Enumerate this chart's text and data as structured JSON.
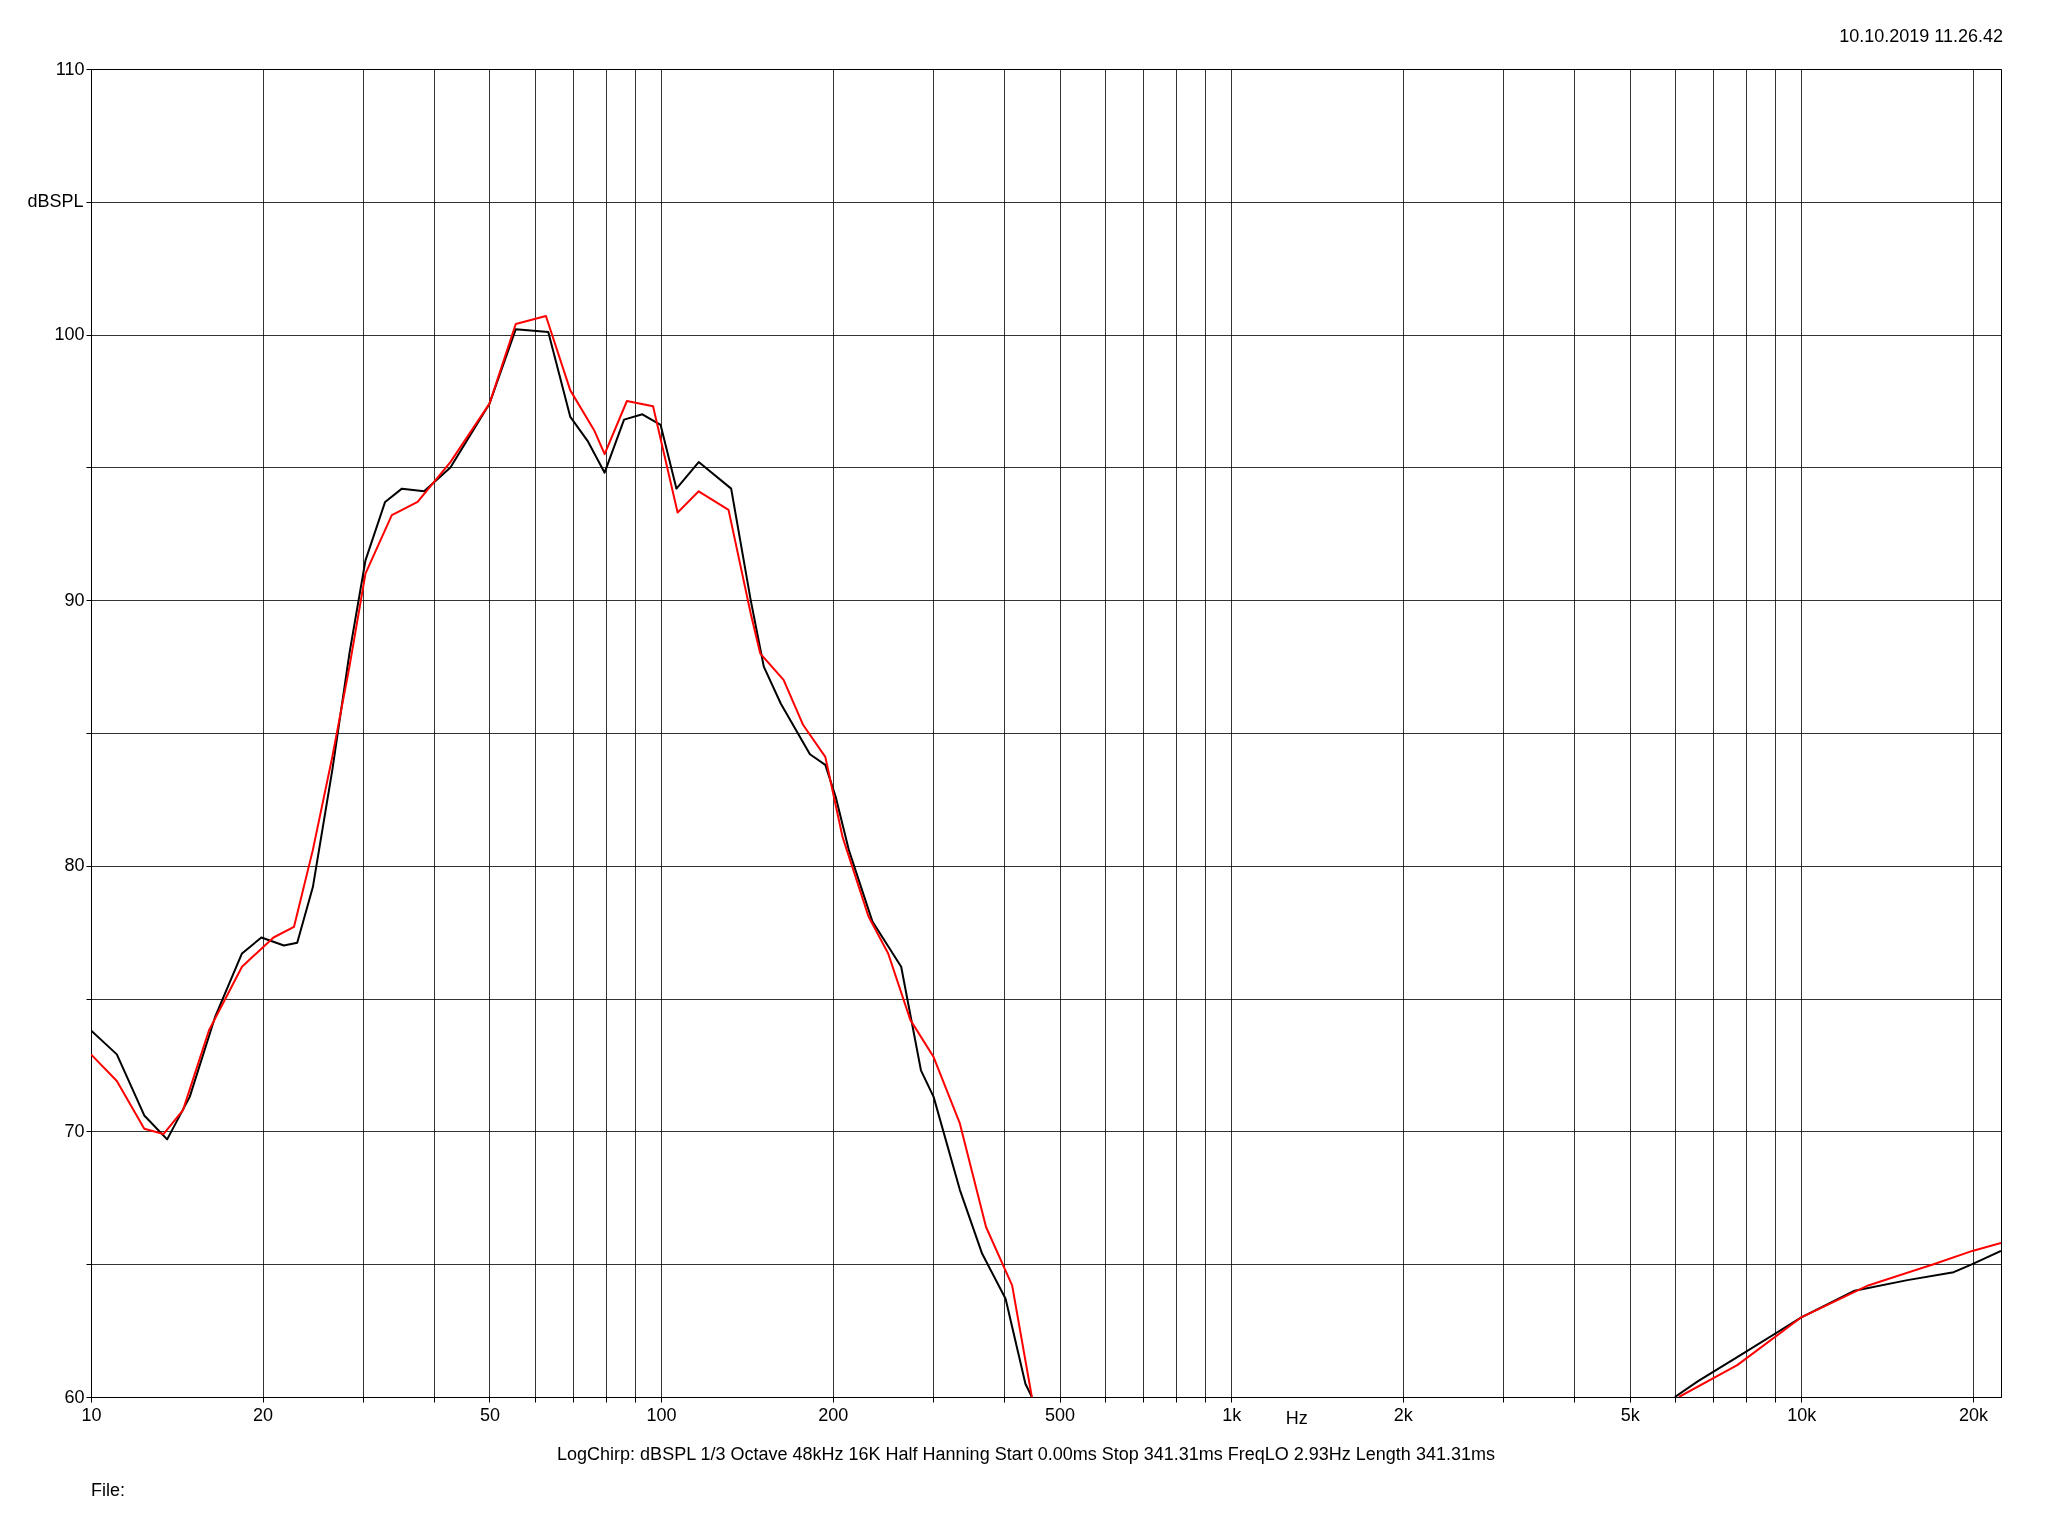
{
  "chart_data": {
    "type": "line",
    "xlabel": "Hz",
    "ylabel": "dBSPL",
    "log": "x",
    "grid": true,
    "xlim": [
      10,
      22400
    ],
    "xticks": [
      10,
      {
        "value": 20,
        "label": "20"
      },
      {
        "value": 30,
        "label": null
      },
      {
        "value": 40,
        "label": null
      },
      50,
      {
        "value": 60,
        "label": null
      },
      {
        "value": 70,
        "label": null
      },
      {
        "value": 80,
        "label": null
      },
      {
        "value": 90,
        "label": null
      },
      100,
      200,
      {
        "value": 300,
        "label": null
      },
      {
        "value": 400,
        "label": null
      },
      500,
      {
        "value": 600,
        "label": null
      },
      {
        "value": 700,
        "label": null
      },
      {
        "value": 800,
        "label": null
      },
      {
        "value": 900,
        "label": null
      },
      {
        "value": 1000,
        "label": "1k"
      },
      {
        "value": 2000,
        "label": "2k"
      },
      {
        "value": 3000,
        "label": null
      },
      {
        "value": 4000,
        "label": null
      },
      {
        "value": 5000,
        "label": "5k"
      },
      {
        "value": 6000,
        "label": null
      },
      {
        "value": 7000,
        "label": null
      },
      {
        "value": 8000,
        "label": null
      },
      {
        "value": 9000,
        "label": null
      },
      {
        "value": 10000,
        "label": "10k"
      },
      {
        "value": 20000,
        "label": "20k"
      }
    ],
    "ylim": [
      60,
      110
    ],
    "yticks": [
      60,
      {
        "value": 65,
        "label": null
      },
      70,
      {
        "value": 75,
        "label": null
      },
      80,
      {
        "value": 85,
        "label": null
      },
      90,
      {
        "value": 95,
        "label": null
      },
      100,
      {
        "value": 105,
        "label": null
      },
      110
    ],
    "annotations": [
      "10.10.2019 11.26.42",
      "LogChirp:  dBSPL   1/3 Octave   48kHz   16K   Half Hanning   Start 0.00ms   Stop 341.31ms   FreqLO 2.93Hz   Length 341.31ms",
      "File:"
    ],
    "series": [
      {
        "color": "#000000",
        "x": [
          10,
          11.1,
          12.4,
          13.6,
          14.9,
          16.5,
          18.4,
          19.9,
          21.8,
          23,
          24.5,
          26.5,
          28.4,
          30.3,
          32.8,
          35.1,
          38.4,
          42.7,
          50,
          55.6,
          63.4,
          69.3,
          74.3,
          79.6,
          86.1,
          92.7,
          99.8,
          106.4,
          116.4,
          132.7,
          143.6,
          151.4,
          162.2,
          182.4,
          194.1,
          202.4,
          213.4,
          234.8,
          263.7,
          285.6,
          300.6,
          334.2,
          365.6,
          402,
          435.5,
          447,
          1000,
          6000,
          6590,
          7720,
          10000,
          12400,
          15350,
          18500,
          19950,
          22400
        ],
        "values": [
          73.8,
          72.9,
          70.6,
          69.7,
          71.3,
          74.3,
          76.7,
          77.3,
          77,
          77.1,
          79.2,
          83.6,
          88,
          91.5,
          93.7,
          94.2,
          94.1,
          95,
          97.4,
          100.2,
          100.1,
          96.9,
          96,
          94.8,
          96.8,
          97,
          96.6,
          94.2,
          95.2,
          94.2,
          90,
          87.5,
          86.1,
          84.2,
          83.8,
          82.6,
          80.6,
          77.9,
          76.2,
          72.3,
          71.3,
          67.8,
          65.4,
          63.7,
          60.5,
          60,
          null,
          60,
          60.6,
          61.5,
          63,
          64,
          64.4,
          64.7,
          65,
          65.5
        ]
      },
      {
        "color": "#ff0000",
        "x": [
          10,
          11.1,
          12.4,
          13.4,
          14.5,
          16.1,
          18.4,
          20.9,
          22.7,
          24.5,
          26.5,
          28.4,
          30.3,
          33.7,
          37.4,
          42.7,
          50,
          55.6,
          62.8,
          69.3,
          76.3,
          79.6,
          87.1,
          96.8,
          106.9,
          116.4,
          131.3,
          143.6,
          149.2,
          164,
          177.5,
          194.1,
          208,
          231,
          250.2,
          273.6,
          300.6,
          334.2,
          371.5,
          412.8,
          447,
          1000,
          6100,
          7720,
          10000,
          13100,
          17060,
          19950,
          22400
        ],
        "values": [
          72.9,
          71.9,
          70.1,
          69.9,
          70.8,
          73.8,
          76.2,
          77.3,
          77.7,
          80.6,
          84.1,
          87.5,
          91,
          93.2,
          93.7,
          95.2,
          97.4,
          100.4,
          100.7,
          97.9,
          96.4,
          95.5,
          97.5,
          97.3,
          93.3,
          94.1,
          93.4,
          89.5,
          88,
          87,
          85.3,
          84.1,
          81.1,
          78.1,
          76.7,
          74.2,
          72.8,
          70.3,
          66.4,
          64.2,
          60,
          null,
          60,
          61.2,
          63,
          64.2,
          65,
          65.5,
          65.8
        ]
      }
    ]
  }
}
